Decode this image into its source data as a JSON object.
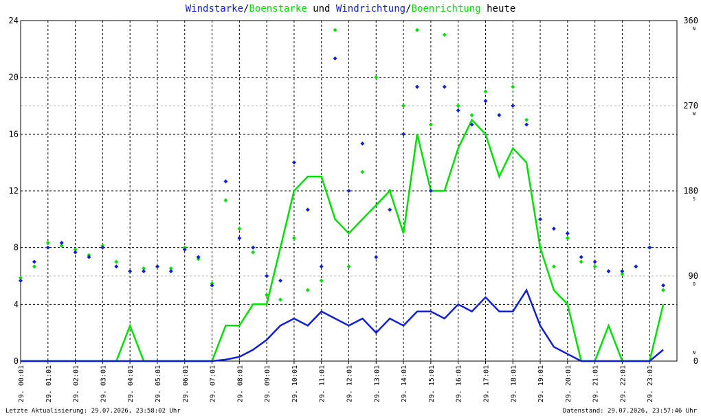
{
  "chart_data": {
    "type": "line",
    "title_connectors": [
      "/",
      " und ",
      "/",
      " heute"
    ],
    "footer_left": "Letzte Aktualisierung: 29.07.2026, 23:58:02 Uhr",
    "footer_right": "Datenstand: 29.07.2026, 23:57:46 Uhr",
    "x": [
      0,
      0.5,
      1,
      1.5,
      2,
      2.5,
      3,
      3.5,
      4,
      4.5,
      5,
      5.5,
      6,
      6.5,
      7,
      7.5,
      8,
      8.5,
      9,
      9.5,
      10,
      10.5,
      11,
      11.5,
      12,
      12.5,
      13,
      13.5,
      14,
      14.5,
      15,
      15.5,
      16,
      16.5,
      17,
      17.5,
      18,
      18.5,
      19,
      19.5,
      20,
      20.5,
      21,
      21.5,
      22,
      22.5,
      23,
      23.5
    ],
    "xlim": [
      0,
      24
    ],
    "xticks": [
      {
        "value": 0,
        "label": "29. 00:01"
      },
      {
        "value": 1,
        "label": "29. 01:01"
      },
      {
        "value": 2,
        "label": "29. 02:01"
      },
      {
        "value": 3,
        "label": "29. 03:01"
      },
      {
        "value": 4,
        "label": "29. 04:01"
      },
      {
        "value": 5,
        "label": "29. 05:01"
      },
      {
        "value": 6,
        "label": "29. 06:01"
      },
      {
        "value": 7,
        "label": "29. 07:01"
      },
      {
        "value": 8,
        "label": "29. 08:01"
      },
      {
        "value": 9,
        "label": "29. 09:01"
      },
      {
        "value": 10,
        "label": "29. 10:01"
      },
      {
        "value": 11,
        "label": "29. 11:01"
      },
      {
        "value": 12,
        "label": "29. 12:01"
      },
      {
        "value": 13,
        "label": "29. 13:01"
      },
      {
        "value": 14,
        "label": "29. 14:01"
      },
      {
        "value": 15,
        "label": "29. 15:01"
      },
      {
        "value": 16,
        "label": "29. 16:01"
      },
      {
        "value": 17,
        "label": "29. 17:01"
      },
      {
        "value": 18,
        "label": "29. 18:01"
      },
      {
        "value": 19,
        "label": "29. 19:01"
      },
      {
        "value": 20,
        "label": "29. 20:01"
      },
      {
        "value": 21,
        "label": "29. 21:01"
      },
      {
        "value": 22,
        "label": "29. 22:01"
      },
      {
        "value": 23,
        "label": "29. 23:01"
      }
    ],
    "ylim": [
      0,
      24
    ],
    "yticks": [
      0,
      4,
      8,
      12,
      16,
      20,
      24
    ],
    "y2lim": [
      0,
      360
    ],
    "y2ticks": [
      0,
      90,
      180,
      270,
      360
    ],
    "y2tick_letters": [
      "N",
      "O",
      "S",
      "W",
      "N"
    ],
    "grid": true,
    "series": [
      {
        "name": "Boenstarke",
        "color": "#00e000",
        "kind": "line",
        "values": [
          0,
          0,
          0,
          0,
          0,
          0,
          0,
          0,
          2.5,
          0,
          0,
          0,
          0,
          0,
          0,
          2.5,
          2.5,
          4,
          4,
          8,
          12,
          13,
          13,
          10,
          9,
          10,
          11,
          12,
          9,
          16,
          12,
          12,
          15,
          17,
          16,
          13,
          15,
          14,
          8,
          5,
          4,
          0,
          0,
          2.5,
          0,
          0,
          0,
          4
        ]
      },
      {
        "name": "Windstarke",
        "color": "#1020d0",
        "kind": "line",
        "values": [
          0,
          0,
          0,
          0,
          0,
          0,
          0,
          0,
          0,
          0,
          0,
          0,
          0,
          0,
          0,
          0.1,
          0.3,
          0.8,
          1.5,
          2.5,
          3,
          2.5,
          3.5,
          3,
          2.5,
          3,
          2,
          3,
          2.5,
          3.5,
          3.5,
          3,
          4,
          3.5,
          4.5,
          3.5,
          3.5,
          5,
          2.5,
          1,
          0.5,
          0,
          0,
          0,
          0,
          0,
          0,
          0.8
        ]
      },
      {
        "name": "Boenrichtung",
        "color": "#00e000",
        "kind": "scatter",
        "axis": "y2",
        "values": [
          88,
          100,
          125,
          122,
          118,
          112,
          122,
          105,
          95,
          98,
          100,
          98,
          120,
          108,
          82,
          170,
          140,
          115,
          70,
          65,
          130,
          75,
          85,
          350,
          100,
          200,
          300,
          180,
          270,
          350,
          250,
          345,
          270,
          260,
          285,
          260,
          290,
          255,
          120,
          100,
          130,
          105,
          100,
          95,
          92,
          100,
          120,
          75
        ]
      },
      {
        "name": "Windrichtung",
        "color": "#1020d0",
        "kind": "scatter",
        "axis": "y2",
        "values": [
          85,
          105,
          120,
          125,
          115,
          110,
          120,
          100,
          95,
          95,
          100,
          95,
          118,
          110,
          80,
          190,
          130,
          120,
          90,
          85,
          210,
          160,
          100,
          320,
          180,
          230,
          110,
          160,
          240,
          290,
          180,
          290,
          265,
          250,
          275,
          260,
          270,
          250,
          150,
          140,
          135,
          110,
          105,
          95,
          95,
          100,
          120,
          80
        ]
      }
    ]
  }
}
